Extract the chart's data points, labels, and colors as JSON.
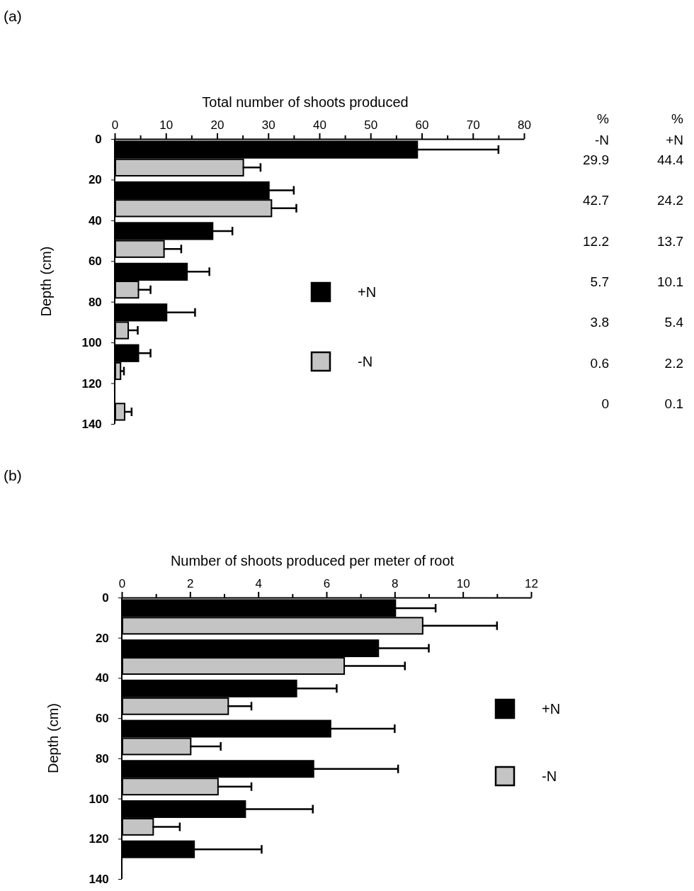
{
  "chart_data": [
    {
      "type": "bar",
      "orientation": "horizontal",
      "xlabel": "Total number of shoots produced",
      "ylabel": "Depth (cm)",
      "x": [
        10,
        30,
        50,
        70,
        90,
        110,
        130
      ],
      "series": [
        {
          "name": "+N",
          "color": "#000000",
          "values": [
            59,
            30,
            19,
            14,
            10,
            4.5,
            null
          ],
          "errors": [
            16,
            5,
            4,
            4.5,
            5.7,
            2.5,
            null
          ]
        },
        {
          "name": "-N",
          "color": "#c4c4c4",
          "values": [
            25,
            30.5,
            9.5,
            4.5,
            2.5,
            1,
            1.8
          ],
          "errors": [
            3.5,
            5,
            3.5,
            2.5,
            2,
            0.8,
            1.5
          ]
        }
      ],
      "xlim": [
        0,
        80
      ],
      "xticks": [
        0,
        {
          "value": 5,
          "label": null
        },
        10,
        {
          "value": 15,
          "label": null
        },
        20,
        {
          "value": 25,
          "label": null
        },
        30,
        {
          "value": 35,
          "label": null
        },
        40,
        {
          "value": 45,
          "label": null
        },
        50,
        {
          "value": 55,
          "label": null
        },
        60,
        {
          "value": 65,
          "label": null
        },
        70,
        {
          "value": 75,
          "label": null
        },
        80
      ],
      "ylim": [
        140,
        0
      ],
      "yticks": [
        0,
        20,
        40,
        60,
        80,
        100,
        120,
        140
      ],
      "legend": "right",
      "grid": false,
      "annotations": [
        "(a)",
        "%",
        "%",
        "-N",
        "+N",
        "29.9",
        "44.4",
        "42.7",
        "24.2",
        "12.2",
        "13.7",
        "5.7",
        "10.1",
        "3.8",
        "5.4",
        "0.6",
        "2.2",
        "0",
        "0.1"
      ]
    },
    {
      "type": "bar",
      "orientation": "horizontal",
      "xlabel": "Number of shoots produced per meter of root",
      "ylabel": "Depth (cm)",
      "x": [
        10,
        30,
        50,
        70,
        90,
        110,
        130
      ],
      "series": [
        {
          "name": "+N",
          "color": "#000000",
          "values": [
            8.0,
            7.5,
            5.1,
            6.1,
            5.6,
            3.6,
            2.1
          ],
          "errors": [
            1.2,
            1.5,
            1.2,
            1.9,
            2.5,
            2.0,
            2.0
          ]
        },
        {
          "name": "-N",
          "color": "#c4c4c4",
          "values": [
            8.8,
            6.5,
            3.1,
            2.0,
            2.8,
            0.9,
            null
          ],
          "errors": [
            2.2,
            1.8,
            0.7,
            0.9,
            1.0,
            0.8,
            null
          ]
        }
      ],
      "xlim": [
        0,
        12
      ],
      "xticks": [
        0,
        {
          "value": 1,
          "label": null
        },
        2,
        {
          "value": 3,
          "label": null
        },
        4,
        {
          "value": 5,
          "label": null
        },
        6,
        {
          "value": 7,
          "label": null
        },
        8,
        {
          "value": 9,
          "label": null
        },
        10,
        {
          "value": 11,
          "label": null
        },
        12
      ],
      "ylim": [
        140,
        0
      ],
      "yticks": [
        0,
        20,
        40,
        60,
        80,
        100,
        120,
        140
      ],
      "legend": "right",
      "grid": false,
      "annotations": [
        "(b)"
      ]
    }
  ]
}
